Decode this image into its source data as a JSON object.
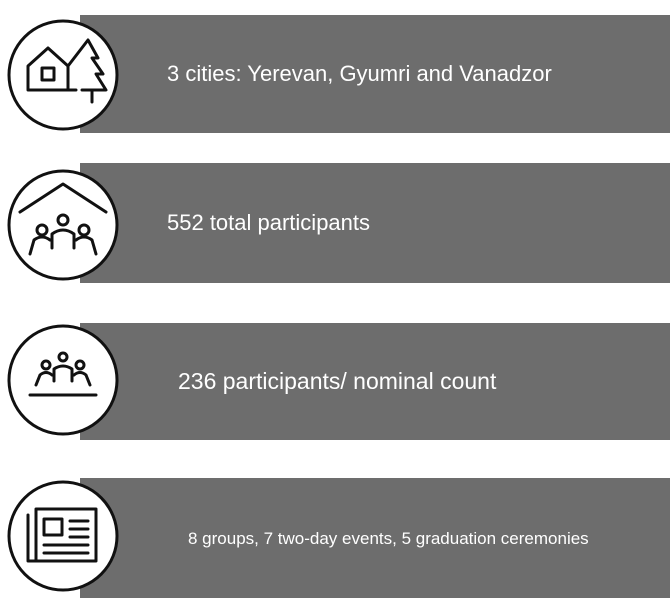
{
  "items": [
    {
      "text": "3 cities: Yerevan, Gyumri and Vanadzor"
    },
    {
      "text": "552 total participants"
    },
    {
      "text": "236 participants/ nominal count"
    },
    {
      "text": "8 groups, 7 two-day events, 5 graduation ceremonies"
    }
  ]
}
